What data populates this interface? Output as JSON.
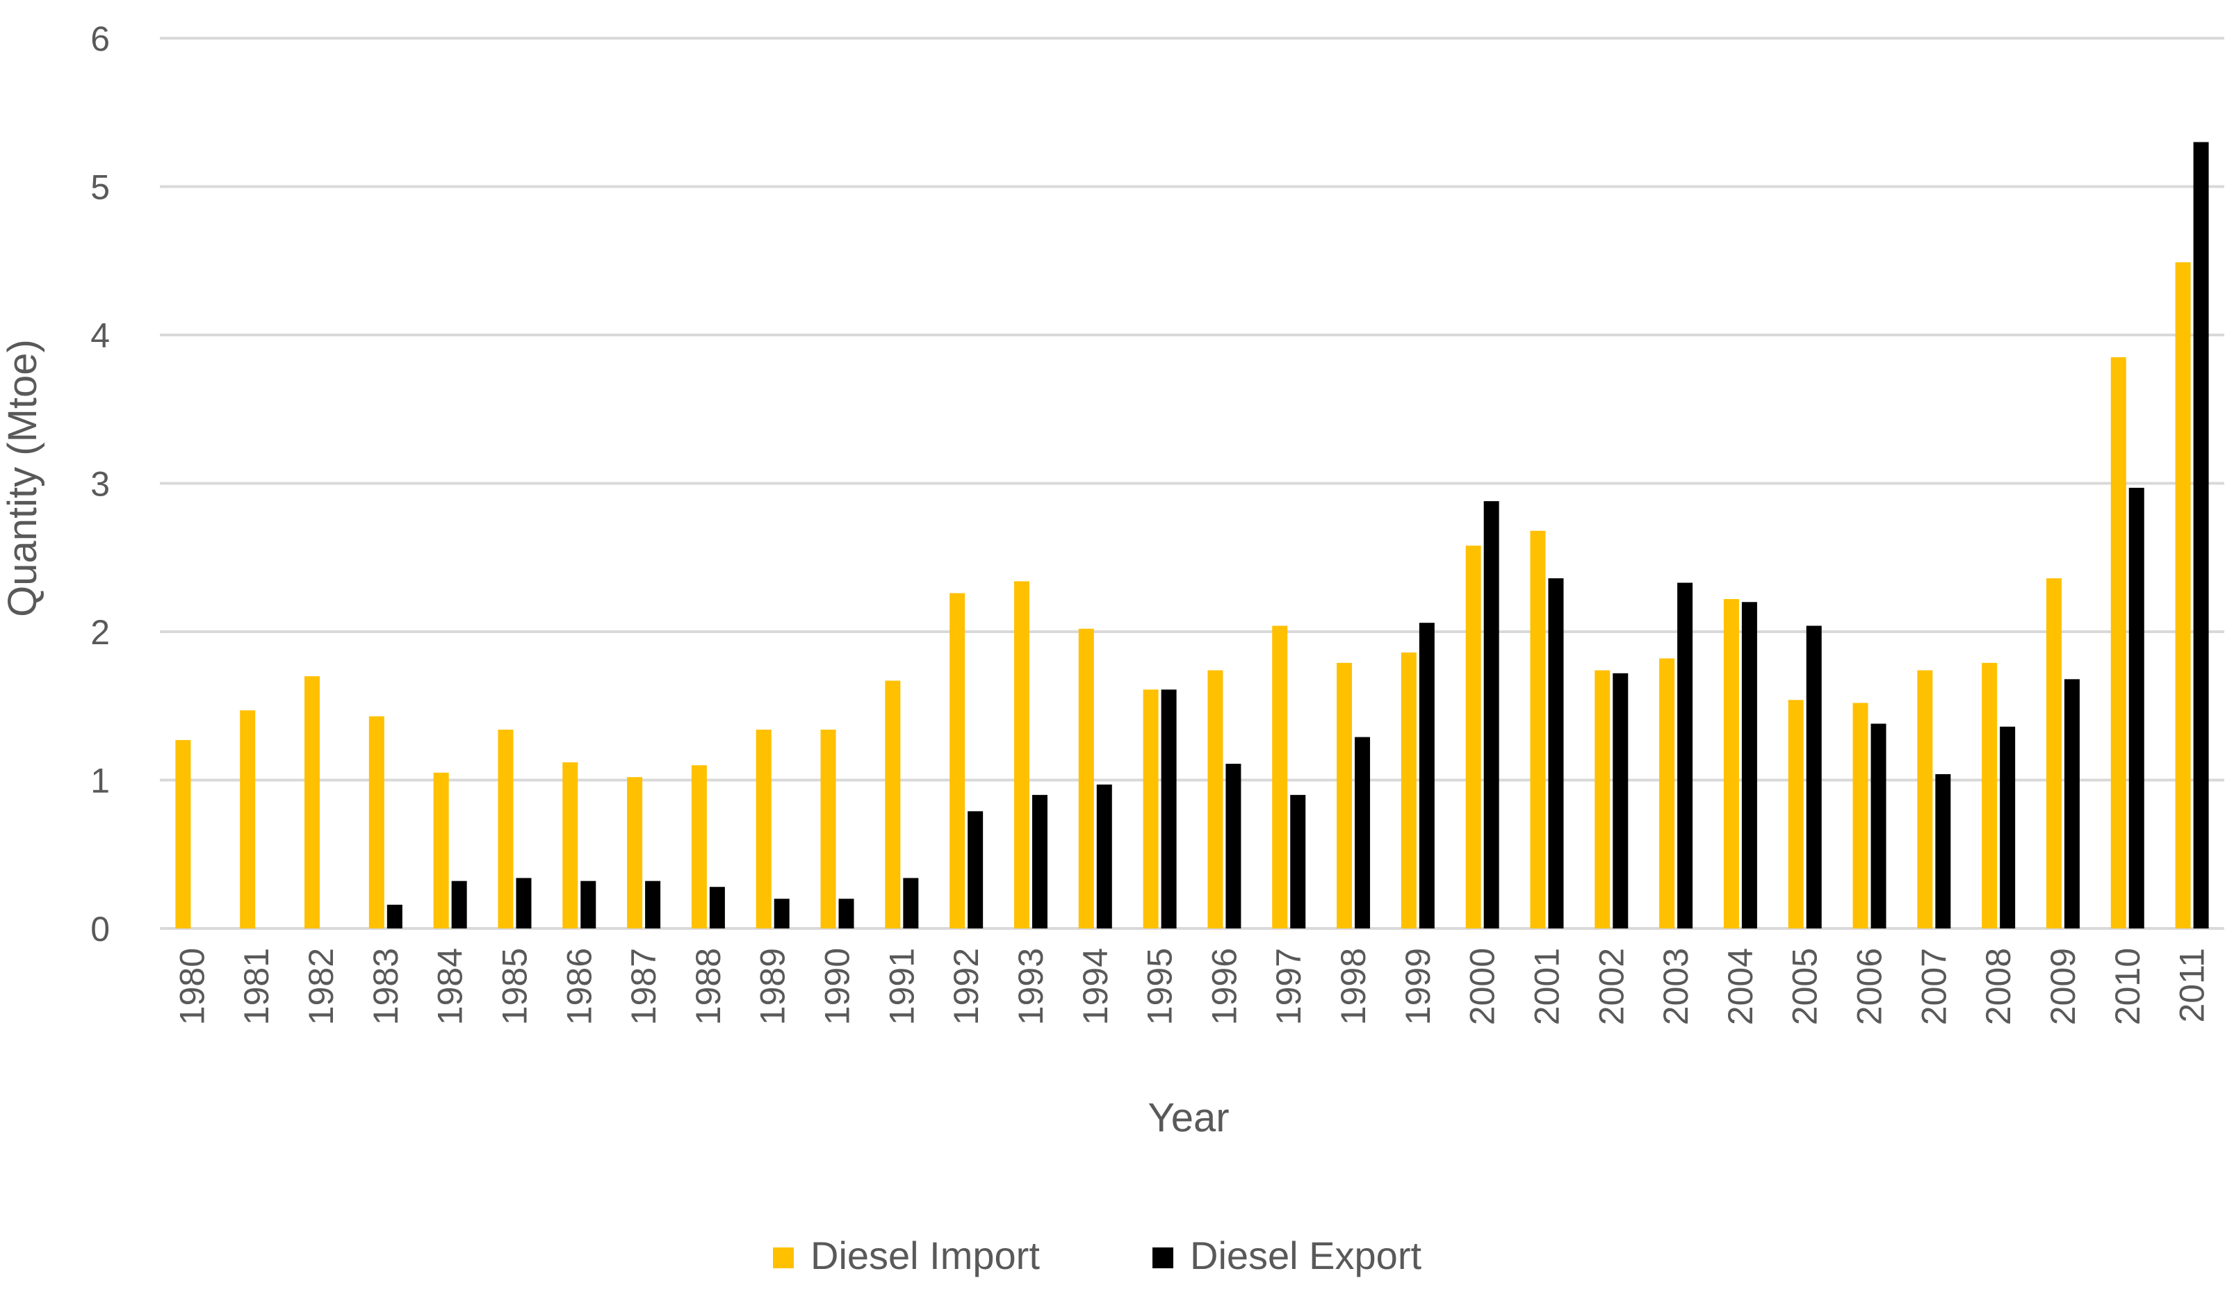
{
  "chart_data": {
    "type": "bar",
    "title": "",
    "xlabel": "Year",
    "ylabel": "Quantity (Mtoe)",
    "ylim": [
      0,
      6
    ],
    "yticks": [
      0,
      1,
      2,
      3,
      4,
      5,
      6
    ],
    "grid": true,
    "legend_position": "bottom",
    "categories": [
      "1980",
      "1981",
      "1982",
      "1983",
      "1984",
      "1985",
      "1986",
      "1987",
      "1988",
      "1989",
      "1990",
      "1991",
      "1992",
      "1993",
      "1994",
      "1995",
      "1996",
      "1997",
      "1998",
      "1999",
      "2000",
      "2001",
      "2002",
      "2003",
      "2004",
      "2005",
      "2006",
      "2007",
      "2008",
      "2009",
      "2010",
      "2011"
    ],
    "series": [
      {
        "name": "Diesel Import",
        "color": "#FFC000",
        "values": [
          1.27,
          1.47,
          1.7,
          1.43,
          1.05,
          1.34,
          1.12,
          1.02,
          1.1,
          1.34,
          1.34,
          1.67,
          2.26,
          2.34,
          2.02,
          1.61,
          1.74,
          2.04,
          1.79,
          1.86,
          2.58,
          2.68,
          1.74,
          1.82,
          2.22,
          1.54,
          1.52,
          1.74,
          1.79,
          2.36,
          3.85,
          4.49
        ]
      },
      {
        "name": "Diesel Export",
        "color": "#000000",
        "values": [
          0,
          0,
          0,
          0.16,
          0.32,
          0.34,
          0.32,
          0.32,
          0.28,
          0.2,
          0.2,
          0.34,
          0.79,
          0.9,
          0.97,
          1.61,
          1.11,
          0.9,
          1.29,
          2.06,
          2.88,
          2.36,
          1.72,
          2.33,
          2.2,
          2.04,
          1.38,
          1.04,
          1.36,
          1.68,
          2.97,
          5.3
        ]
      }
    ]
  },
  "colors": {
    "grid": "#D9D9D9",
    "text": "#595959"
  }
}
